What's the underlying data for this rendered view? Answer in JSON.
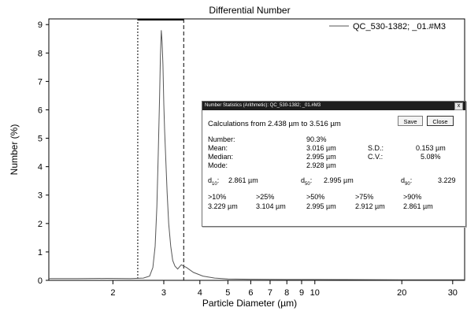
{
  "chart_data": {
    "type": "line",
    "title": "Differential Number",
    "xlabel": "Particle Diameter (µm)",
    "ylabel": "Number (%)",
    "x_scale": "log",
    "xlim": [
      1.2,
      33
    ],
    "ylim": [
      0,
      9.2
    ],
    "x_ticks": [
      2,
      3,
      4,
      5,
      6,
      7,
      8,
      9,
      10,
      20,
      30
    ],
    "x_tick_labels": [
      "2",
      "3",
      "4",
      "5",
      "6",
      "7",
      "8",
      "9",
      "10",
      "20",
      "30"
    ],
    "y_ticks": [
      0,
      1,
      2,
      3,
      4,
      5,
      6,
      7,
      8,
      9
    ],
    "y_tick_labels": [
      "0",
      "1",
      "2",
      "3",
      "4",
      "5",
      "6",
      "7",
      "8",
      "9"
    ],
    "grid": "off",
    "legend_position": "top-right",
    "range_markers": [
      2.438,
      3.516
    ],
    "series": [
      {
        "name": "QC_530-1382; _01.#M3",
        "color": "#555555",
        "x": [
          1.2,
          1.5,
          1.9,
          2.3,
          2.55,
          2.68,
          2.75,
          2.8,
          2.84,
          2.87,
          2.9,
          2.92,
          2.94,
          2.96,
          2.98,
          3.0,
          3.02,
          3.05,
          3.08,
          3.12,
          3.17,
          3.22,
          3.28,
          3.35,
          3.45,
          3.6,
          3.8,
          4.1,
          4.5,
          5.0,
          6.0,
          8.0,
          10.0,
          20.0,
          30.0,
          33.0
        ],
        "y": [
          0.06,
          0.06,
          0.07,
          0.06,
          0.08,
          0.15,
          0.45,
          1.2,
          2.6,
          4.4,
          6.4,
          7.9,
          8.8,
          8.4,
          7.6,
          6.2,
          5.3,
          4.2,
          3.1,
          2.0,
          1.2,
          0.7,
          0.5,
          0.4,
          0.55,
          0.45,
          0.28,
          0.15,
          0.08,
          0.05,
          0.04,
          0.03,
          0.03,
          0.02,
          0.02,
          0.02
        ]
      }
    ]
  },
  "dialog": {
    "title": "Number Statistics (Arithmetic): QC_530-1382; _01.#M3",
    "close_glyph": "x",
    "calc_range": "Calculations from 2.438 µm to 3.516 µm",
    "save_label": "Save",
    "close_label": "Close",
    "number_label": "Number:",
    "number_value": "90.3%",
    "mean_label": "Mean:",
    "mean_value": "3.016 µm",
    "sd_label": "S.D.:",
    "sd_value": "0.153 µm",
    "median_label": "Median:",
    "median_value": "2.995 µm",
    "cv_label": "C.V.:",
    "cv_value": "5.08%",
    "mode_label": "Mode:",
    "mode_value": "2.928 µm",
    "d10_label": "d",
    "d10_sub": "10",
    "d10_value": "2.861 µm",
    "d50_label": "d",
    "d50_sub": "50",
    "d50_value": "2.995 µm",
    "d90_label": "d",
    "d90_sub": "90",
    "d90_value": "3.229",
    "percentiles": [
      {
        "label": ">10%",
        "value": "3.229 µm"
      },
      {
        "label": ">25%",
        "value": "3.104 µm"
      },
      {
        "label": ">50%",
        "value": "2.995 µm"
      },
      {
        "label": ">75%",
        "value": "2.912 µm"
      },
      {
        "label": ">90%",
        "value": "2.861 µm"
      }
    ]
  }
}
